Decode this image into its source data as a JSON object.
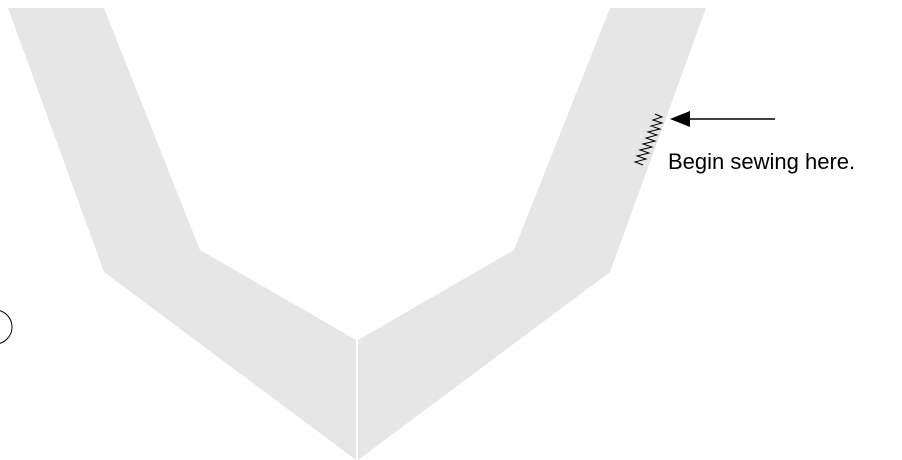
{
  "diagram": {
    "caption": "Begin sewing here.",
    "colors": {
      "background": "#ffffff",
      "fabric": "#e6e6e6",
      "stroke": "#000000"
    },
    "icons": {
      "stitch": "zigzag-stitch-icon",
      "arrow": "left-arrow-icon",
      "circle_marker": "circle-marker-icon"
    }
  }
}
